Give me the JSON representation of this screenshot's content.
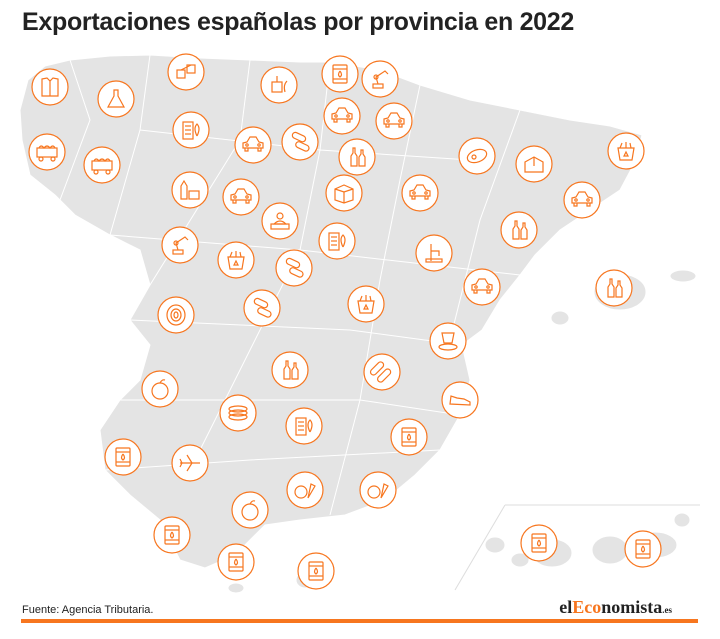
{
  "title": "Exportaciones españolas por provincia en 2022",
  "source": "Fuente: Agencia Tributaria.",
  "logo": {
    "pre": "el",
    "highlight": "Eco",
    "post": "nomista",
    "suffix": ".es"
  },
  "colors": {
    "accent": "#f7761f",
    "land": "#e4e4e4",
    "border": "#ffffff"
  },
  "icons": [
    "shirt",
    "flask",
    "steel-beams",
    "paper-mill",
    "oil-barrel",
    "robot-arm",
    "car",
    "car",
    "mining-cart",
    "mining-cart",
    "battery",
    "car",
    "pills",
    "bottles",
    "meat",
    "packaging",
    "recycling",
    "dairy",
    "car",
    "cardboard-box",
    "car",
    "car",
    "sculpture",
    "battery",
    "robot-arm",
    "recycling",
    "pills",
    "faucet",
    "bottles",
    "car",
    "bottles",
    "tires",
    "pills",
    "recycling",
    "ceramics",
    "bottles",
    "pipes",
    "orange",
    "shoe",
    "wire-coils",
    "battery",
    "oil-barrel",
    "oil-barrel",
    "plane",
    "fruits-vegetables",
    "fruits-vegetables",
    "orange",
    "oil-barrel",
    "oil-barrel",
    "oil-barrel",
    "oil-barrel",
    "oil-barrel"
  ]
}
